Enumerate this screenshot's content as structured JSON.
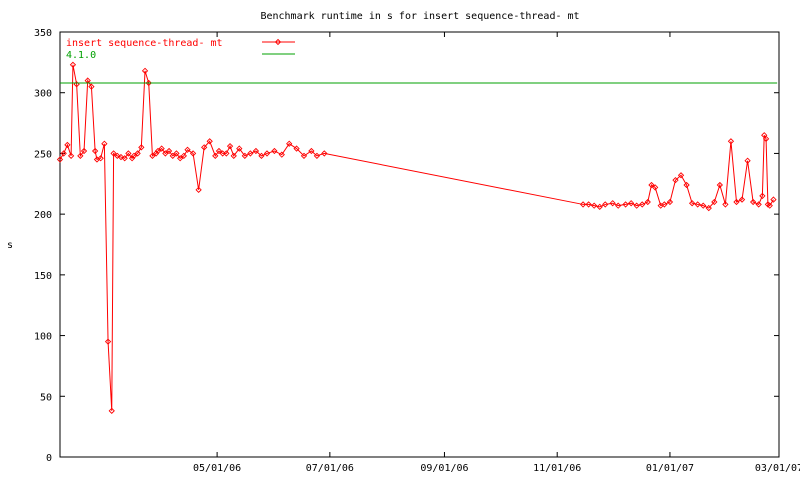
{
  "chart_data": {
    "type": "line",
    "title": "Benchmark runtime in s for insert sequence-thread-  mt",
    "xlabel": "",
    "ylabel": "s",
    "ylim": [
      0,
      350
    ],
    "xlim": [
      "2006-02-05",
      "2007-03-01"
    ],
    "yticks": [
      0,
      50,
      100,
      150,
      200,
      250,
      300,
      350
    ],
    "xticks": [
      {
        "date": "2006-05-01",
        "label": "05/01/06"
      },
      {
        "date": "2006-07-01",
        "label": "07/01/06"
      },
      {
        "date": "2006-09-01",
        "label": "09/01/06"
      },
      {
        "date": "2006-11-01",
        "label": "11/01/06"
      },
      {
        "date": "2007-01-01",
        "label": "01/01/07"
      },
      {
        "date": "2007-03-01",
        "label": "03/01/07"
      }
    ],
    "grid": false,
    "legend_position": "top-left",
    "series": [
      {
        "name": "insert sequence-thread-  mt",
        "color": "#ff0000",
        "marker": "diamond",
        "x": [
          "2006-02-05",
          "2006-02-07",
          "2006-02-09",
          "2006-02-11",
          "2006-02-12",
          "2006-02-14",
          "2006-02-16",
          "2006-02-18",
          "2006-02-20",
          "2006-02-22",
          "2006-02-24",
          "2006-02-25",
          "2006-02-27",
          "2006-03-01",
          "2006-03-03",
          "2006-03-05",
          "2006-03-06",
          "2006-03-08",
          "2006-03-10",
          "2006-03-12",
          "2006-03-14",
          "2006-03-16",
          "2006-03-17",
          "2006-03-19",
          "2006-03-21",
          "2006-03-23",
          "2006-03-25",
          "2006-03-27",
          "2006-03-29",
          "2006-03-30",
          "2006-04-01",
          "2006-04-03",
          "2006-04-05",
          "2006-04-07",
          "2006-04-09",
          "2006-04-11",
          "2006-04-13",
          "2006-04-15",
          "2006-04-18",
          "2006-04-21",
          "2006-04-24",
          "2006-04-27",
          "2006-04-30",
          "2006-05-02",
          "2006-05-04",
          "2006-05-06",
          "2006-05-08",
          "2006-05-10",
          "2006-05-13",
          "2006-05-16",
          "2006-05-19",
          "2006-05-22",
          "2006-05-25",
          "2006-05-28",
          "2006-06-01",
          "2006-06-05",
          "2006-06-09",
          "2006-06-13",
          "2006-06-17",
          "2006-06-21",
          "2006-06-24",
          "2006-06-28",
          "2006-11-15",
          "2006-11-18",
          "2006-11-21",
          "2006-11-24",
          "2006-11-27",
          "2006-12-01",
          "2006-12-04",
          "2006-12-08",
          "2006-12-11",
          "2006-12-14",
          "2006-12-17",
          "2006-12-20",
          "2006-12-22",
          "2006-12-24",
          "2006-12-27",
          "2006-12-29",
          "2007-01-01",
          "2007-01-04",
          "2007-01-07",
          "2007-01-10",
          "2007-01-13",
          "2007-01-16",
          "2007-01-19",
          "2007-01-22",
          "2007-01-25",
          "2007-01-28",
          "2007-01-31",
          "2007-02-03",
          "2007-02-06",
          "2007-02-09",
          "2007-02-12",
          "2007-02-15",
          "2007-02-18",
          "2007-02-20",
          "2007-02-21",
          "2007-02-22",
          "2007-02-23",
          "2007-02-24",
          "2007-02-26"
        ],
        "y": [
          245,
          250,
          257,
          248,
          323,
          307,
          248,
          252,
          310,
          305,
          252,
          245,
          246,
          258,
          95,
          38,
          250,
          248,
          247,
          246,
          250,
          246,
          248,
          250,
          255,
          318,
          308,
          248,
          250,
          252,
          254,
          250,
          252,
          248,
          250,
          246,
          248,
          253,
          250,
          220,
          255,
          260,
          248,
          252,
          250,
          250,
          256,
          248,
          254,
          248,
          250,
          252,
          248,
          250,
          252,
          249,
          258,
          254,
          248,
          252,
          248,
          250,
          208,
          208,
          207,
          206,
          208,
          209,
          207,
          208,
          209,
          207,
          208,
          210,
          224,
          222,
          207,
          208,
          210,
          228,
          232,
          224,
          209,
          208,
          207,
          205,
          210,
          224,
          208,
          260,
          210,
          212,
          244,
          210,
          208,
          215,
          265,
          262,
          208,
          207,
          212
        ]
      },
      {
        "name": "4.1.0",
        "color": "#00a000",
        "marker": "none",
        "x": [
          "2006-02-05",
          "2007-02-28"
        ],
        "y": [
          308,
          308
        ]
      }
    ]
  }
}
